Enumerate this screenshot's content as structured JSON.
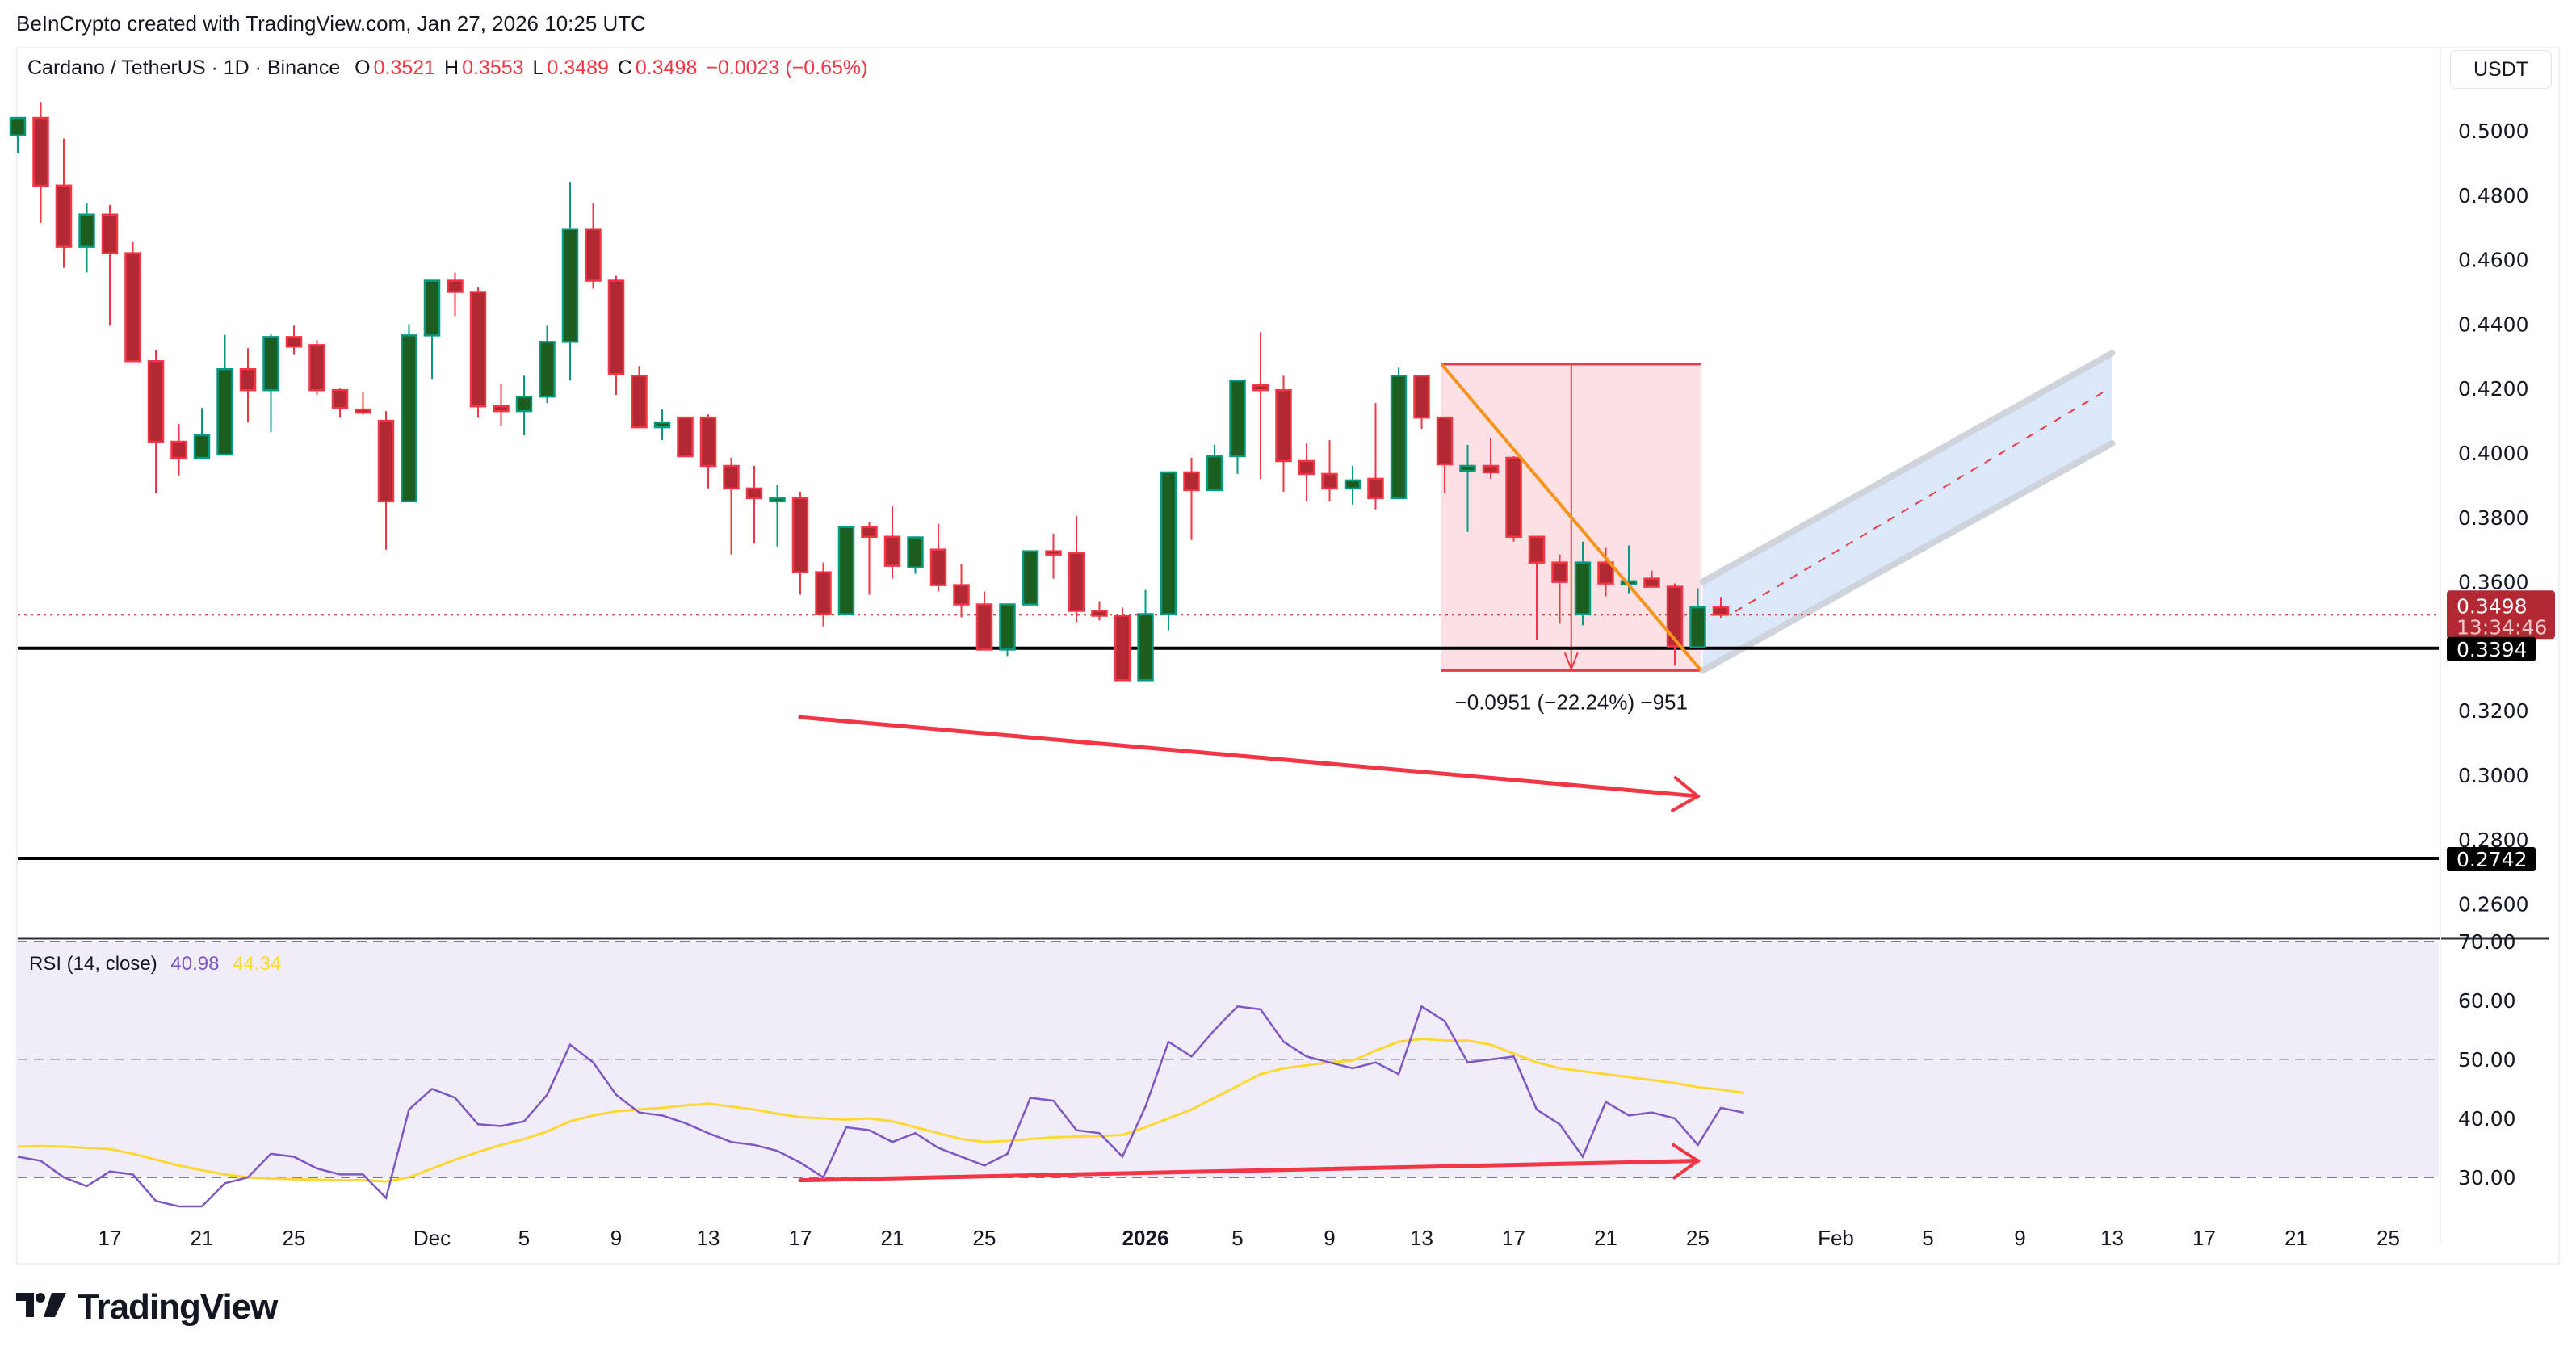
{
  "header": {
    "credit": "BeInCrypto created with TradingView.com, Jan 27, 2026 10:25 UTC",
    "symbol": "Cardano / TetherUS · 1D · Binance",
    "open_label": "O",
    "open": "0.3521",
    "high_label": "H",
    "high": "0.3553",
    "low_label": "L",
    "low": "0.3489",
    "close_label": "C",
    "close": "0.3498",
    "change": "−0.0023 (−0.65%)",
    "currency_button": "USDT"
  },
  "price_axis": {
    "ticks": [
      "0.5000",
      "0.4800",
      "0.4600",
      "0.4400",
      "0.4200",
      "0.4000",
      "0.3800",
      "0.3600",
      "0.3200",
      "0.3000",
      "0.2800",
      "0.2600"
    ],
    "current_price": "0.3498",
    "countdown": "13:34:46",
    "support_1": "0.3394",
    "support_2": "0.2742"
  },
  "rsi_panel": {
    "title": "RSI (14, close)",
    "rsi_value": "40.98",
    "ma_value": "44.34",
    "ticks": [
      "70.00",
      "60.00",
      "50.00",
      "40.00",
      "30.00"
    ]
  },
  "time_axis": {
    "labels": [
      "17",
      "21",
      "25",
      "Dec",
      "5",
      "9",
      "13",
      "17",
      "21",
      "25",
      "2026",
      "5",
      "9",
      "13",
      "17",
      "21",
      "25",
      "Feb",
      "5",
      "9",
      "13",
      "17",
      "21",
      "25"
    ]
  },
  "measure": {
    "label": "−0.0951 (−22.24%) −951"
  },
  "brand": {
    "name": "TradingView"
  },
  "colors": {
    "up_body": "#1b5e20",
    "up_border": "#089981",
    "down_body": "#b22833",
    "down_border": "#f23645",
    "rsi_line": "#7e57c2",
    "rsi_ma": "#fdd835",
    "rsi_bg": "#f0ecf8",
    "measure_fill": "#fde0e3",
    "channel_fill": "#dbe8fa",
    "channel_edge": "#cfd3dc",
    "trend_orange": "#f7931a",
    "arrow_red": "#f23645"
  },
  "chart_data": {
    "type": "candlestick",
    "title": "Cardano / TetherUS · 1D · Binance",
    "xlabel": "",
    "ylabel": "USDT",
    "ylim": [
      0.255,
      0.51
    ],
    "x": [
      "Nov 13",
      "Nov 14",
      "Nov 15",
      "Nov 16",
      "Nov 17",
      "Nov 18",
      "Nov 19",
      "Nov 20",
      "Nov 21",
      "Nov 22",
      "Nov 23",
      "Nov 24",
      "Nov 25",
      "Nov 26",
      "Nov 27",
      "Nov 28",
      "Nov 29",
      "Nov 30",
      "Dec 1",
      "Dec 2",
      "Dec 3",
      "Dec 4",
      "Dec 5",
      "Dec 6",
      "Dec 7",
      "Dec 8",
      "Dec 9",
      "Dec 10",
      "Dec 11",
      "Dec 12",
      "Dec 13",
      "Dec 14",
      "Dec 15",
      "Dec 16",
      "Dec 17",
      "Dec 18",
      "Dec 19",
      "Dec 20",
      "Dec 21",
      "Dec 22",
      "Dec 23",
      "Dec 24",
      "Dec 25",
      "Dec 26",
      "Dec 27",
      "Dec 28",
      "Dec 29",
      "Dec 30",
      "Dec 31",
      "Jan 1",
      "Jan 2",
      "Jan 3",
      "Jan 4",
      "Jan 5",
      "Jan 6",
      "Jan 7",
      "Jan 8",
      "Jan 9",
      "Jan 10",
      "Jan 11",
      "Jan 12",
      "Jan 13",
      "Jan 14",
      "Jan 15",
      "Jan 16",
      "Jan 17",
      "Jan 18",
      "Jan 19",
      "Jan 20",
      "Jan 21",
      "Jan 22",
      "Jan 23",
      "Jan 24",
      "Jan 25",
      "Jan 26",
      "Jan 27"
    ],
    "ohlc": [
      [
        0.4986,
        0.504,
        0.493,
        0.504
      ],
      [
        0.504,
        0.509,
        0.4715,
        0.483
      ],
      [
        0.483,
        0.4976,
        0.4575,
        0.464
      ],
      [
        0.464,
        0.4775,
        0.456,
        0.474
      ],
      [
        0.474,
        0.477,
        0.4395,
        0.462
      ],
      [
        0.462,
        0.4655,
        0.4285,
        0.4285
      ],
      [
        0.4285,
        0.4319,
        0.3875,
        0.4035
      ],
      [
        0.4035,
        0.409,
        0.393,
        0.3985
      ],
      [
        0.3985,
        0.414,
        0.4015,
        0.4055
      ],
      [
        0.3995,
        0.4367,
        0.4018,
        0.426
      ],
      [
        0.426,
        0.4325,
        0.4095,
        0.4195
      ],
      [
        0.4195,
        0.437,
        0.4065,
        0.436
      ],
      [
        0.436,
        0.4395,
        0.4305,
        0.433
      ],
      [
        0.4335,
        0.435,
        0.418,
        0.4195
      ],
      [
        0.4195,
        0.42,
        0.411,
        0.414
      ],
      [
        0.4135,
        0.419,
        0.412,
        0.413
      ],
      [
        0.41,
        0.413,
        0.37,
        0.385
      ],
      [
        0.385,
        0.44,
        0.385,
        0.4365
      ],
      [
        0.4365,
        0.453,
        0.423,
        0.4535
      ],
      [
        0.4535,
        0.456,
        0.4425,
        0.45
      ],
      [
        0.45,
        0.4515,
        0.411,
        0.4145
      ],
      [
        0.4145,
        0.4215,
        0.4085,
        0.413
      ],
      [
        0.413,
        0.424,
        0.4055,
        0.4175
      ],
      [
        0.4175,
        0.4395,
        0.4155,
        0.4345
      ],
      [
        0.4345,
        0.484,
        0.4225,
        0.4695
      ],
      [
        0.4695,
        0.4775,
        0.451,
        0.4535
      ],
      [
        0.4535,
        0.455,
        0.418,
        0.4245
      ],
      [
        0.424,
        0.427,
        0.4125,
        0.408
      ],
      [
        0.408,
        0.4135,
        0.404,
        0.4095
      ],
      [
        0.411,
        0.411,
        0.399,
        0.399
      ],
      [
        0.411,
        0.412,
        0.389,
        0.396
      ],
      [
        0.396,
        0.3985,
        0.3685,
        0.389
      ],
      [
        0.389,
        0.396,
        0.372,
        0.386
      ],
      [
        0.386,
        0.39,
        0.371,
        0.386
      ],
      [
        0.386,
        0.388,
        0.356,
        0.363
      ],
      [
        0.363,
        0.366,
        0.3462,
        0.35
      ],
      [
        0.35,
        0.377,
        0.3535,
        0.377
      ],
      [
        0.377,
        0.3786,
        0.356,
        0.374
      ],
      [
        0.374,
        0.3835,
        0.361,
        0.365
      ],
      [
        0.3645,
        0.3738,
        0.3625,
        0.3738
      ],
      [
        0.37,
        0.378,
        0.357,
        0.359
      ],
      [
        0.359,
        0.3655,
        0.349,
        0.353
      ],
      [
        0.353,
        0.357,
        0.339,
        0.339
      ],
      [
        0.339,
        0.352,
        0.337,
        0.353
      ],
      [
        0.353,
        0.365,
        0.353,
        0.3695
      ],
      [
        0.3695,
        0.375,
        0.361,
        0.3685
      ],
      [
        0.369,
        0.3805,
        0.3475,
        0.351
      ],
      [
        0.351,
        0.354,
        0.348,
        0.3495
      ],
      [
        0.3495,
        0.352,
        0.332,
        0.3295
      ],
      [
        0.3295,
        0.3575,
        0.331,
        0.35
      ],
      [
        0.35,
        0.359,
        0.345,
        0.394
      ],
      [
        0.394,
        0.3985,
        0.373,
        0.3885
      ],
      [
        0.3885,
        0.4025,
        0.3885,
        0.399
      ],
      [
        0.399,
        0.4225,
        0.3935,
        0.4225
      ],
      [
        0.421,
        0.4375,
        0.392,
        0.4195
      ],
      [
        0.4195,
        0.424,
        0.388,
        0.3975
      ],
      [
        0.3975,
        0.403,
        0.385,
        0.3935
      ],
      [
        0.3935,
        0.404,
        0.385,
        0.389
      ],
      [
        0.389,
        0.396,
        0.384,
        0.3915
      ],
      [
        0.392,
        0.4155,
        0.3825,
        0.386
      ],
      [
        0.386,
        0.4265,
        0.3865,
        0.424
      ],
      [
        0.424,
        0.424,
        0.4075,
        0.411
      ],
      [
        0.411,
        0.411,
        0.3875,
        0.3965
      ],
      [
        0.3945,
        0.4025,
        0.3755,
        0.396
      ],
      [
        0.396,
        0.4045,
        0.392,
        0.394
      ],
      [
        0.3985,
        0.399,
        0.3725,
        0.374
      ],
      [
        0.374,
        0.374,
        0.342,
        0.366
      ],
      [
        0.366,
        0.3685,
        0.347,
        0.36
      ],
      [
        0.35,
        0.3725,
        0.3465,
        0.366
      ],
      [
        0.366,
        0.3705,
        0.3555,
        0.3595
      ],
      [
        0.3602,
        0.3713,
        0.3565,
        0.3602
      ],
      [
        0.361,
        0.3635,
        0.359,
        0.3585
      ],
      [
        0.3585,
        0.3595,
        0.334,
        0.34
      ],
      [
        0.3397,
        0.358,
        0.3393,
        0.3521
      ],
      [
        0.3521,
        0.3553,
        0.3489,
        0.3498
      ]
    ],
    "overlays": {
      "horizontal_lines": [
        0.3394,
        0.2742
      ],
      "current_price_line": 0.3498,
      "measure": {
        "from": "Jan 14",
        "to": "Jan 25",
        "high": 0.4276,
        "low": 0.3325,
        "delta": -0.0951,
        "pct": -22.24,
        "ticks": -951
      },
      "downtrend_line": {
        "from": [
          "Jan 14",
          0.4276
        ],
        "to": [
          "Jan 25",
          0.3325
        ]
      },
      "rising_channel": {
        "from": "Jan 25",
        "to": "Feb 12",
        "lower_start": 0.3325,
        "upper_start": 0.36,
        "lower_end": 0.403,
        "upper_end": 0.431
      },
      "price_arrow": {
        "from": [
          "Dec 17",
          0.318
        ],
        "to": [
          "Jan 25",
          0.2935
        ],
        "direction": "down"
      },
      "rsi_arrow": {
        "from": [
          "Dec 17",
          29.5
        ],
        "to": [
          "Jan 25",
          32.8
        ],
        "direction": "up"
      }
    },
    "rsi": {
      "levels": [
        70,
        50,
        30
      ],
      "values": [
        33.5,
        32.8,
        30.0,
        28.5,
        31.0,
        30.5,
        26.0,
        22.0,
        24.0,
        29.0,
        30.0,
        34.0,
        33.5,
        31.5,
        30.5,
        30.5,
        26.5,
        41.5,
        45.0,
        43.5,
        39.0,
        38.7,
        39.5,
        44.0,
        52.5,
        49.5,
        44.0,
        41.0,
        40.5,
        39.2,
        37.5,
        36.0,
        35.5,
        34.5,
        32.5,
        30.0,
        38.5,
        38.0,
        36.0,
        37.5,
        35.0,
        33.5,
        32.0,
        34.0,
        43.5,
        43.0,
        38.0,
        37.5,
        33.5,
        42.0,
        53.0,
        50.5,
        55.0,
        59.0,
        58.5,
        53.0,
        50.5,
        49.5,
        48.5,
        49.5,
        47.5,
        59.0,
        56.5,
        49.5,
        50.0,
        50.5,
        41.5,
        39.0,
        33.5,
        42.8,
        40.5,
        41.0,
        40.0,
        35.5,
        41.8,
        40.98
      ],
      "ma_values": [
        35.2,
        35.3,
        35.2,
        35.0,
        34.8,
        34.0,
        33.0,
        32.0,
        31.2,
        30.5,
        30.0,
        29.8,
        29.7,
        29.6,
        29.5,
        29.5,
        29.3,
        30.0,
        31.5,
        33.0,
        34.3,
        35.5,
        36.5,
        37.8,
        39.5,
        40.5,
        41.2,
        41.5,
        41.8,
        42.2,
        42.5,
        42.0,
        41.5,
        40.8,
        40.2,
        40.0,
        39.8,
        40.0,
        39.5,
        38.5,
        37.5,
        36.5,
        36.0,
        36.2,
        36.5,
        36.8,
        36.9,
        37.0,
        37.2,
        38.5,
        40.0,
        41.5,
        43.5,
        45.5,
        47.5,
        48.5,
        49.0,
        49.5,
        49.8,
        51.5,
        53.0,
        53.5,
        53.2,
        53.2,
        52.5,
        51.0,
        49.5,
        48.5,
        48.0,
        47.5,
        47.0,
        46.5,
        46.0,
        45.3,
        44.9,
        44.34
      ]
    }
  }
}
